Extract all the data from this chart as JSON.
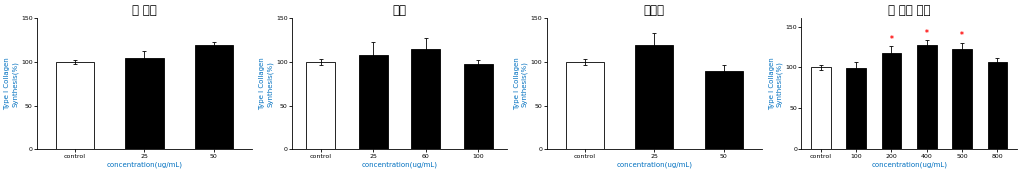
{
  "charts": [
    {
      "title": "토 복령",
      "categories": [
        "control",
        "25",
        "50"
      ],
      "values": [
        100,
        105,
        120
      ],
      "errors": [
        2,
        8,
        3
      ],
      "bar_colors": [
        "white",
        "black",
        "black"
      ],
      "bar_edgecolors": [
        "black",
        "black",
        "black"
      ],
      "xlabel": "concentration(ug/mL)",
      "ylabel": "Type I Collagen\nSynthesis(%)",
      "ylim": [
        0,
        150
      ],
      "yticks": [
        0,
        50,
        100,
        150
      ],
      "asterisks": []
    },
    {
      "title": "작약",
      "categories": [
        "control",
        "25",
        "60",
        "100"
      ],
      "values": [
        100,
        108,
        115,
        98
      ],
      "errors": [
        3,
        15,
        12,
        4
      ],
      "bar_colors": [
        "white",
        "black",
        "black",
        "black"
      ],
      "bar_edgecolors": [
        "black",
        "black",
        "black",
        "black"
      ],
      "xlabel": "concentration(ug/mL)",
      "ylabel": "Type I Collagen\nSynthesis(%)",
      "ylim": [
        0,
        150
      ],
      "yticks": [
        0,
        50,
        100,
        150
      ],
      "asterisks": []
    },
    {
      "title": "연자육",
      "categories": [
        "control",
        "25",
        "50"
      ],
      "values": [
        100,
        120,
        90
      ],
      "errors": [
        3,
        13,
        7
      ],
      "bar_colors": [
        "white",
        "black",
        "black"
      ],
      "bar_edgecolors": [
        "black",
        "black",
        "black"
      ],
      "xlabel": "concentration(ug/mL)",
      "ylabel": "Type I Collagen\nSynthesis(%)",
      "ylim": [
        0,
        150
      ],
      "yticks": [
        0,
        50,
        100,
        150
      ],
      "asterisks": []
    },
    {
      "title": "체 리세 이지",
      "categories": [
        "control",
        "100",
        "200",
        "400",
        "500",
        "800"
      ],
      "values": [
        100,
        99,
        118,
        128,
        122,
        107
      ],
      "errors": [
        3,
        8,
        8,
        5,
        8,
        4
      ],
      "bar_colors": [
        "white",
        "black",
        "black",
        "black",
        "black",
        "black"
      ],
      "bar_edgecolors": [
        "black",
        "black",
        "black",
        "black",
        "black",
        "black"
      ],
      "xlabel": "concentration(ug/mL)",
      "ylabel": "Type I Collagen\nSynthesis(%)",
      "ylim": [
        0,
        160
      ],
      "yticks": [
        0,
        50,
        100,
        150
      ],
      "asterisks": [
        2,
        3,
        4
      ]
    }
  ],
  "fig_width": 10.21,
  "fig_height": 1.72,
  "title_fontsize": 8.5,
  "label_fontsize": 5.0,
  "tick_fontsize": 4.5,
  "bar_width": 0.55,
  "label_color": "#0070C0",
  "asterisk_color": "#FF0000"
}
